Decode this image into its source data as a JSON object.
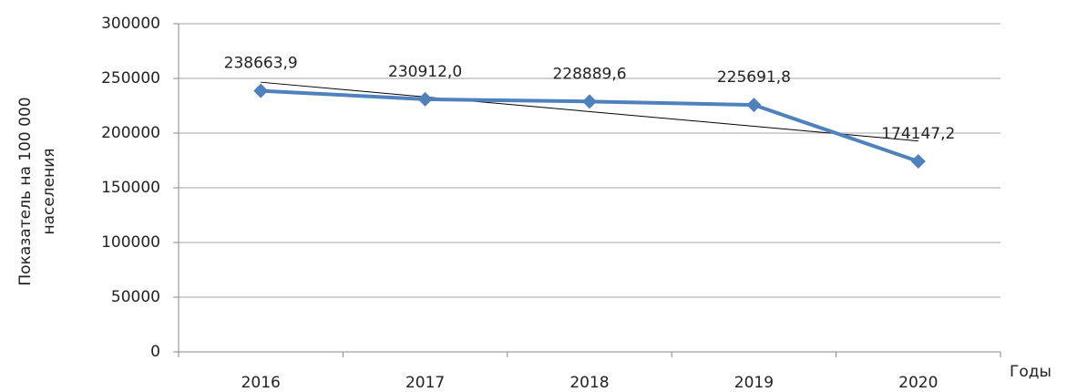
{
  "chart_data": {
    "type": "line",
    "y_label": [
      "Показатель на 100 000",
      "населения"
    ],
    "x_label": "Годы",
    "categories": [
      "2016",
      "2017",
      "2018",
      "2019",
      "2020"
    ],
    "series": [
      {
        "name": null,
        "color": "#4f81bd",
        "values": [
          238663.9,
          230912.0,
          228889.6,
          225691.8,
          174147.2
        ],
        "value_labels": [
          "238663,9",
          "230912,0",
          "228889,6",
          "225691,8",
          "174147,2"
        ]
      }
    ],
    "trendline": true,
    "ylim": [
      0,
      300000
    ],
    "yticks": [
      0,
      50000,
      100000,
      150000,
      200000,
      250000,
      300000
    ],
    "grid": true
  }
}
